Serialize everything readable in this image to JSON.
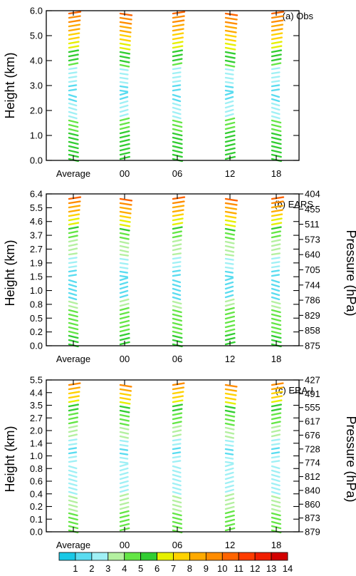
{
  "chart_data": [
    {
      "type": "wind-profile",
      "label": "(a) Obs",
      "ylabel": "Height (km)",
      "yticks": [
        "0.0",
        "1.0",
        "2.0",
        "3.0",
        "4.0",
        "5.0",
        "6.0"
      ],
      "ylim": [
        0,
        6
      ],
      "categories": [
        "Average",
        "00",
        "06",
        "12",
        "18"
      ],
      "right_label": "",
      "right_ticks": []
    },
    {
      "type": "wind-profile",
      "label": "(b) EARS",
      "ylabel": "Height (km)",
      "yticks": [
        "0.0",
        "0.2",
        "0.5",
        "0.8",
        "1.0",
        "1.5",
        "1.9",
        "2.7",
        "3.7",
        "4.6",
        "5.5",
        "6.4"
      ],
      "categories": [
        "Average",
        "00",
        "06",
        "12",
        "18"
      ],
      "right_label": "Pressure (hPa)",
      "right_ticks": [
        "875",
        "858",
        "829",
        "786",
        "744",
        "705",
        "640",
        "573",
        "511",
        "455",
        "404"
      ]
    },
    {
      "type": "wind-profile",
      "label": "(c) ERA-I",
      "ylabel": "Height (km)",
      "yticks": [
        "0.0",
        "0.1",
        "0.2",
        "0.4",
        "0.6",
        "0.8",
        "1.0",
        "1.4",
        "2.0",
        "2.7",
        "3.5",
        "4.4",
        "5.5"
      ],
      "categories": [
        "Average",
        "00",
        "06",
        "12",
        "18"
      ],
      "right_label": "Pressure (hPa)",
      "right_ticks": [
        "879",
        "873",
        "860",
        "840",
        "812",
        "774",
        "728",
        "676",
        "617",
        "555",
        "491",
        "427"
      ]
    }
  ],
  "colorbar": {
    "labels": [
      "1",
      "2",
      "3",
      "4",
      "5",
      "6",
      "7",
      "8",
      "9",
      "10",
      "11",
      "12",
      "13",
      "14"
    ],
    "colors": [
      "#19c8e6",
      "#5adcf0",
      "#a0f0f5",
      "#b4f0a0",
      "#64e646",
      "#32cd32",
      "#e6f000",
      "#ffd200",
      "#ffaa00",
      "#ff8c00",
      "#ff6400",
      "#ff3c00",
      "#f01e00",
      "#d20000"
    ]
  }
}
